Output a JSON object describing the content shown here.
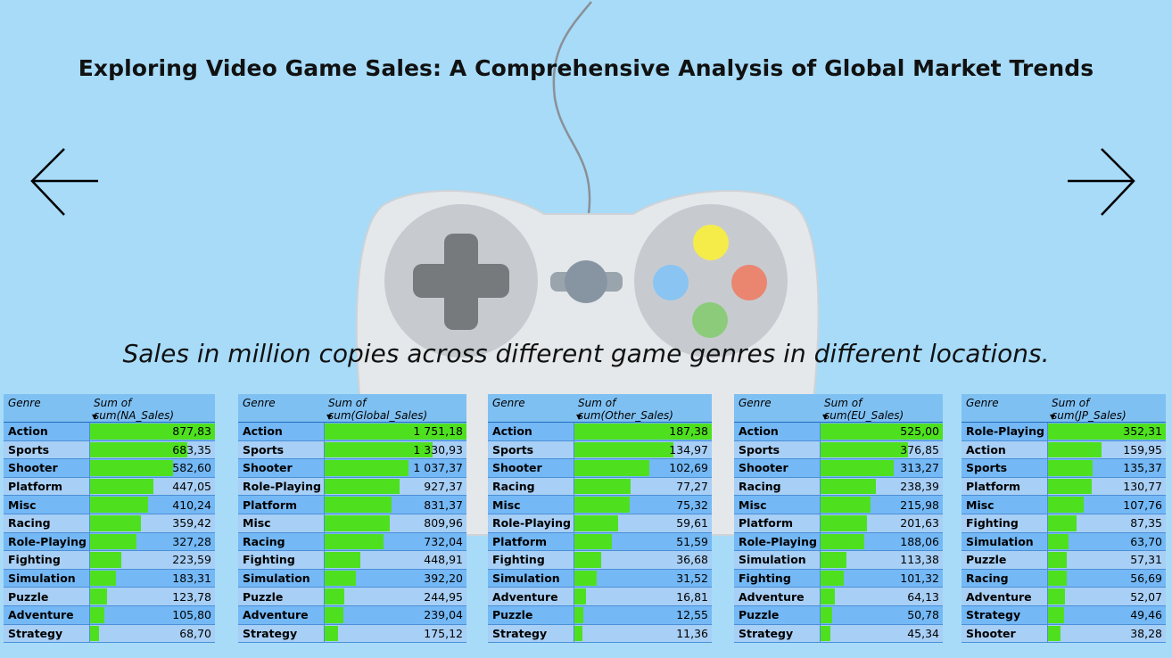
{
  "title": "Exploring Video Game Sales: A Comprehensive Analysis of Global Market Trends",
  "subtitle": "Sales in million copies across different game genres in different locations.",
  "nav": {
    "prev_icon": "arrow-left-icon",
    "next_icon": "arrow-right-icon"
  },
  "colors": {
    "background": "#a7dbf8",
    "bar": "#4ee01f",
    "header": "#7fc0f2",
    "row_dark": "#74b8f5",
    "row_light": "#a8cff5"
  },
  "tables": [
    {
      "genre_header": "Genre",
      "value_header": "Sum of sum(NA_Sales)",
      "max": 877.83,
      "rows": [
        {
          "genre": "Action",
          "value": 877.83,
          "label": "877,83"
        },
        {
          "genre": "Sports",
          "value": 683.35,
          "label": "683,35"
        },
        {
          "genre": "Shooter",
          "value": 582.6,
          "label": "582,60"
        },
        {
          "genre": "Platform",
          "value": 447.05,
          "label": "447,05"
        },
        {
          "genre": "Misc",
          "value": 410.24,
          "label": "410,24"
        },
        {
          "genre": "Racing",
          "value": 359.42,
          "label": "359,42"
        },
        {
          "genre": "Role-Playing",
          "value": 327.28,
          "label": "327,28"
        },
        {
          "genre": "Fighting",
          "value": 223.59,
          "label": "223,59"
        },
        {
          "genre": "Simulation",
          "value": 183.31,
          "label": "183,31"
        },
        {
          "genre": "Puzzle",
          "value": 123.78,
          "label": "123,78"
        },
        {
          "genre": "Adventure",
          "value": 105.8,
          "label": "105,80"
        },
        {
          "genre": "Strategy",
          "value": 68.7,
          "label": "68,70"
        }
      ]
    },
    {
      "genre_header": "Genre",
      "value_header": "Sum of sum(Global_Sales)",
      "max": 1751.18,
      "rows": [
        {
          "genre": "Action",
          "value": 1751.18,
          "label": "1 751,18"
        },
        {
          "genre": "Sports",
          "value": 1330.93,
          "label": "1 330,93"
        },
        {
          "genre": "Shooter",
          "value": 1037.37,
          "label": "1 037,37"
        },
        {
          "genre": "Role-Playing",
          "value": 927.37,
          "label": "927,37"
        },
        {
          "genre": "Platform",
          "value": 831.37,
          "label": "831,37"
        },
        {
          "genre": "Misc",
          "value": 809.96,
          "label": "809,96"
        },
        {
          "genre": "Racing",
          "value": 732.04,
          "label": "732,04"
        },
        {
          "genre": "Fighting",
          "value": 448.91,
          "label": "448,91"
        },
        {
          "genre": "Simulation",
          "value": 392.2,
          "label": "392,20"
        },
        {
          "genre": "Puzzle",
          "value": 244.95,
          "label": "244,95"
        },
        {
          "genre": "Adventure",
          "value": 239.04,
          "label": "239,04"
        },
        {
          "genre": "Strategy",
          "value": 175.12,
          "label": "175,12"
        }
      ]
    },
    {
      "genre_header": "Genre",
      "value_header": "Sum of sum(Other_Sales)",
      "max": 187.38,
      "rows": [
        {
          "genre": "Action",
          "value": 187.38,
          "label": "187,38"
        },
        {
          "genre": "Sports",
          "value": 134.97,
          "label": "134,97"
        },
        {
          "genre": "Shooter",
          "value": 102.69,
          "label": "102,69"
        },
        {
          "genre": "Racing",
          "value": 77.27,
          "label": "77,27"
        },
        {
          "genre": "Misc",
          "value": 75.32,
          "label": "75,32"
        },
        {
          "genre": "Role-Playing",
          "value": 59.61,
          "label": "59,61"
        },
        {
          "genre": "Platform",
          "value": 51.59,
          "label": "51,59"
        },
        {
          "genre": "Fighting",
          "value": 36.68,
          "label": "36,68"
        },
        {
          "genre": "Simulation",
          "value": 31.52,
          "label": "31,52"
        },
        {
          "genre": "Adventure",
          "value": 16.81,
          "label": "16,81"
        },
        {
          "genre": "Puzzle",
          "value": 12.55,
          "label": "12,55"
        },
        {
          "genre": "Strategy",
          "value": 11.36,
          "label": "11,36"
        }
      ]
    },
    {
      "genre_header": "Genre",
      "value_header": "Sum of sum(EU_Sales)",
      "max": 525.0,
      "rows": [
        {
          "genre": "Action",
          "value": 525.0,
          "label": "525,00"
        },
        {
          "genre": "Sports",
          "value": 376.85,
          "label": "376,85"
        },
        {
          "genre": "Shooter",
          "value": 313.27,
          "label": "313,27"
        },
        {
          "genre": "Racing",
          "value": 238.39,
          "label": "238,39"
        },
        {
          "genre": "Misc",
          "value": 215.98,
          "label": "215,98"
        },
        {
          "genre": "Platform",
          "value": 201.63,
          "label": "201,63"
        },
        {
          "genre": "Role-Playing",
          "value": 188.06,
          "label": "188,06"
        },
        {
          "genre": "Simulation",
          "value": 113.38,
          "label": "113,38"
        },
        {
          "genre": "Fighting",
          "value": 101.32,
          "label": "101,32"
        },
        {
          "genre": "Adventure",
          "value": 64.13,
          "label": "64,13"
        },
        {
          "genre": "Puzzle",
          "value": 50.78,
          "label": "50,78"
        },
        {
          "genre": "Strategy",
          "value": 45.34,
          "label": "45,34"
        }
      ]
    },
    {
      "genre_header": "Genre",
      "value_header": "Sum of sum(JP_Sales)",
      "max": 352.31,
      "rows": [
        {
          "genre": "Role-Playing",
          "value": 352.31,
          "label": "352,31"
        },
        {
          "genre": "Action",
          "value": 159.95,
          "label": "159,95"
        },
        {
          "genre": "Sports",
          "value": 135.37,
          "label": "135,37"
        },
        {
          "genre": "Platform",
          "value": 130.77,
          "label": "130,77"
        },
        {
          "genre": "Misc",
          "value": 107.76,
          "label": "107,76"
        },
        {
          "genre": "Fighting",
          "value": 87.35,
          "label": "87,35"
        },
        {
          "genre": "Simulation",
          "value": 63.7,
          "label": "63,70"
        },
        {
          "genre": "Puzzle",
          "value": 57.31,
          "label": "57,31"
        },
        {
          "genre": "Racing",
          "value": 56.69,
          "label": "56,69"
        },
        {
          "genre": "Adventure",
          "value": 52.07,
          "label": "52,07"
        },
        {
          "genre": "Strategy",
          "value": 49.46,
          "label": "49,46"
        },
        {
          "genre": "Shooter",
          "value": 38.28,
          "label": "38,28"
        }
      ]
    }
  ]
}
